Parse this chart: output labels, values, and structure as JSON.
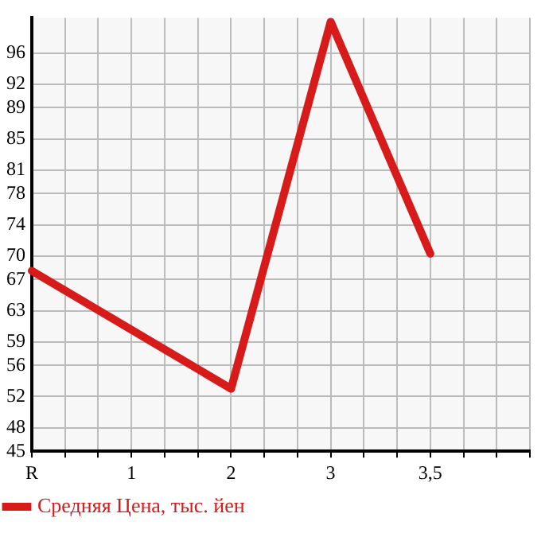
{
  "chart_data": {
    "type": "line",
    "categories": [
      "R",
      null,
      null,
      "1",
      null,
      null,
      "2",
      null,
      null,
      "3",
      null,
      null,
      "3,5",
      null,
      null,
      null
    ],
    "series": [
      {
        "name": "Средняя Цена, тыс. йен",
        "color": "#d71a1a",
        "values": [
          68.1,
          null,
          null,
          null,
          null,
          null,
          53.0,
          null,
          null,
          100,
          null,
          null,
          70.3,
          null,
          null,
          null
        ]
      }
    ],
    "ylim": [
      45,
      100.5
    ],
    "yticks": [
      45,
      48,
      52,
      56,
      59,
      63,
      67,
      70,
      74,
      78,
      81,
      85,
      89,
      92,
      96
    ],
    "grid": true,
    "legend": "bottom left",
    "marker": "none",
    "line_style": "solid"
  }
}
